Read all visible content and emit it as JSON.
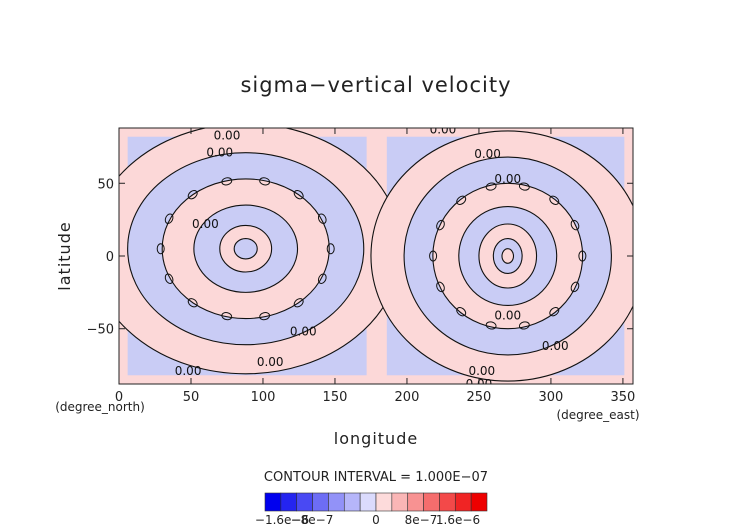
{
  "chart_data": {
    "type": "contour",
    "title": "sigma−vertical velocity",
    "xlabel": "longitude",
    "ylabel": "latitude",
    "x_unit": "(degree_east)",
    "y_unit": "(degree_north)",
    "xlim": [
      0,
      357
    ],
    "ylim": [
      -88,
      88
    ],
    "x_ticks": [
      0,
      50,
      100,
      150,
      200,
      250,
      300,
      350
    ],
    "y_ticks": [
      50,
      0,
      -50
    ],
    "contour_interval_text": "CONTOUR INTERVAL = 1.000E−07",
    "contour_label": "0.00",
    "contour_labels_at": [
      {
        "x": 75,
        "y": 83
      },
      {
        "x": 70,
        "y": 71
      },
      {
        "x": 225,
        "y": 87
      },
      {
        "x": 256,
        "y": 70
      },
      {
        "x": 270,
        "y": 53
      },
      {
        "x": 270,
        "y": -41
      },
      {
        "x": 303,
        "y": -62
      },
      {
        "x": 105,
        "y": -73
      },
      {
        "x": 48,
        "y": -79
      },
      {
        "x": 252,
        "y": -79
      },
      {
        "x": 250,
        "y": -88
      },
      {
        "x": 128,
        "y": -52
      },
      {
        "x": 60,
        "y": 22
      }
    ],
    "centers": [
      {
        "x": 88,
        "y": 5,
        "sign": "positive"
      },
      {
        "x": 270,
        "y": 0,
        "sign": "positive"
      }
    ],
    "colorbar": {
      "min": -1.6e-06,
      "max": 1.6e-06,
      "tick_labels": [
        "−1.6e−6",
        "−8e−7",
        "0",
        "8e−7",
        "1.6e−6"
      ],
      "negative_color": "#0000ee",
      "positive_color": "#ee0000",
      "neutral_color": "#ffffff"
    },
    "background_colors": {
      "negative": "#c9ccf5",
      "positive": "#fcd8d8"
    }
  }
}
